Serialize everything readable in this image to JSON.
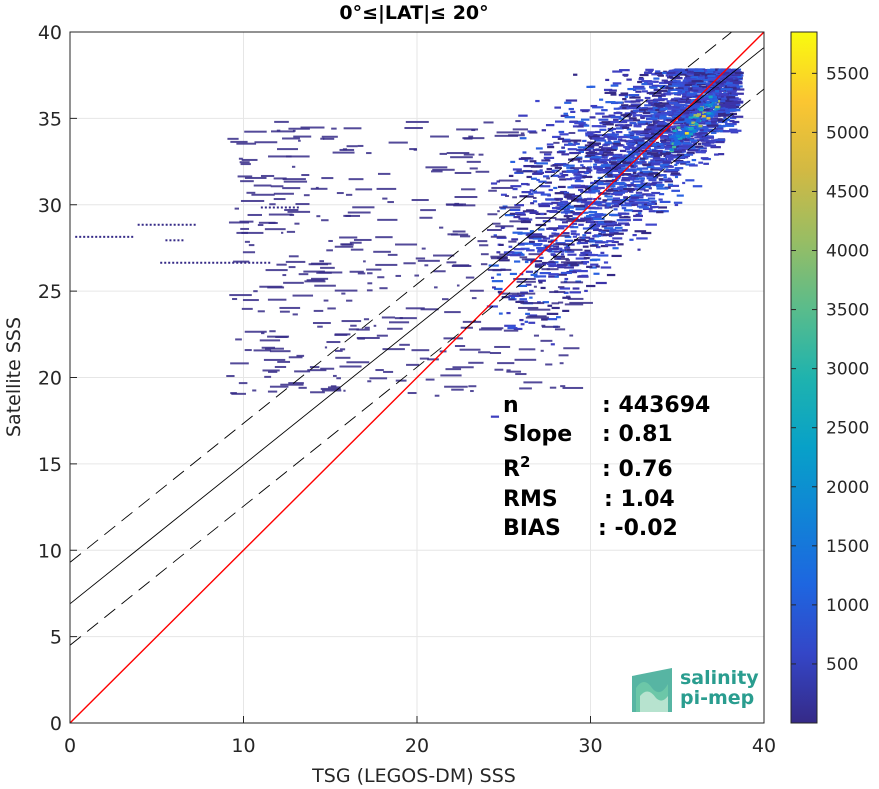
{
  "chart_data": {
    "type": "heatmap",
    "title": "0°≤|LAT|≤ 20°",
    "xlabel": "TSG (LEGOS-DM) SSS",
    "ylabel": "Satellite SSS",
    "xlim": [
      0,
      40
    ],
    "ylim": [
      0,
      40
    ],
    "xticks": [
      "0",
      "10",
      "20",
      "30",
      "40"
    ],
    "yticks": [
      "0",
      "5",
      "10",
      "15",
      "20",
      "25",
      "30",
      "35",
      "40"
    ],
    "grid": true,
    "colorbar": {
      "colormap": "parula",
      "range": [
        0,
        5850
      ],
      "ticks": [
        "500",
        "1000",
        "1500",
        "2000",
        "2500",
        "3000",
        "3500",
        "4000",
        "4500",
        "5000",
        "5500"
      ]
    },
    "lines": [
      {
        "label": "one-to-one",
        "color": "#ff0000",
        "style": "solid",
        "x": [
          0,
          40
        ],
        "y": [
          0,
          40
        ]
      },
      {
        "label": "regression",
        "color": "#000000",
        "style": "solid",
        "x": [
          0,
          40
        ],
        "y": [
          6.9,
          39.1
        ]
      },
      {
        "label": "regression-upper",
        "color": "#000000",
        "style": "dashed",
        "x": [
          0,
          40
        ],
        "y": [
          9.3,
          41.5
        ]
      },
      {
        "label": "regression-lower",
        "color": "#000000",
        "style": "dashed",
        "x": [
          0,
          40
        ],
        "y": [
          4.5,
          36.7
        ]
      }
    ],
    "stats": [
      {
        "label": "n",
        "sup": "",
        "value": ": 443694"
      },
      {
        "label": "Slope",
        "sup": "",
        "value": ": 0.81"
      },
      {
        "label": "R",
        "sup": "2",
        "value": ": 0.76"
      },
      {
        "label": "RMS",
        "sup": "",
        "value": ": 1.04"
      },
      {
        "label": "BIAS",
        "sup": "",
        "value": ": -0.02"
      }
    ]
  },
  "logo": {
    "line1": "salinity",
    "line2": "pi-mep"
  }
}
